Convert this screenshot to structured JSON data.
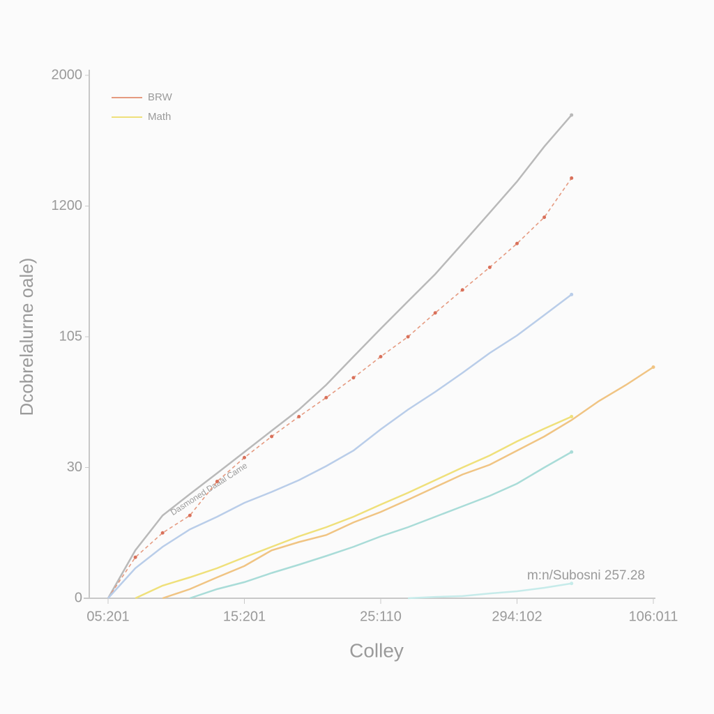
{
  "chart_data": {
    "type": "line",
    "y_label": "Dcobrelalurne oale)",
    "x_label": "Colley",
    "annotation": "Dasmoned Daaal Came",
    "note": "m:n/Subosni 257.28",
    "categories": [
      "05:201",
      null,
      null,
      null,
      null,
      "15:201",
      null,
      null,
      null,
      null,
      "25:110",
      null,
      null,
      null,
      null,
      "294:102",
      null,
      null,
      null,
      null,
      "106:011"
    ],
    "ylim": [
      0,
      2000
    ],
    "yticks": [
      0,
      30,
      105,
      1200,
      2000
    ],
    "legend": "upper left",
    "series": [
      {
        "color": "#b9b9b9",
        "values": [
          0,
          11,
          19,
          23.9,
          28.7,
          38.9,
          51.1,
          63.2,
          77.4,
          93.6,
          173,
          402,
          630,
          886,
          1145,
          1350,
          1564,
          1757,
          null,
          null,
          null
        ]
      },
      {
        "name": "BRW",
        "color": "#e59a80",
        "values": [
          0,
          9.4,
          15,
          19,
          26.8,
          35.7,
          47.8,
          59.2,
          70.1,
          81.5,
          93.6,
          105,
          305,
          498,
          687,
          886,
          1106,
          1371,
          null,
          null,
          null
        ]
      },
      {
        "color": "#b9cde9",
        "values": [
          0,
          6.9,
          11.8,
          15.8,
          18.7,
          21.9,
          24.4,
          27.1,
          30.8,
          39.7,
          51.9,
          63.2,
          73.4,
          84.3,
          95.7,
          116,
          287,
          459,
          null,
          null,
          null
        ]
      },
      {
        "name": "Math",
        "color": "#efe07a",
        "values": [
          null,
          0,
          2.9,
          4.8,
          6.9,
          9.4,
          11.8,
          14.2,
          16.3,
          18.7,
          21.5,
          24.2,
          27.1,
          30,
          36.9,
          45,
          52.3,
          59.2,
          null,
          null,
          null
        ]
      },
      {
        "color": "#f0c483",
        "values": [
          null,
          null,
          0,
          2.1,
          4.8,
          7.4,
          11,
          12.9,
          14.5,
          17.4,
          19.8,
          22.6,
          25.5,
          28.4,
          31.6,
          39.7,
          47.8,
          57.2,
          68.1,
          77.4,
          87.6
        ]
      },
      {
        "color": "#a9dcd8",
        "values": [
          null,
          null,
          null,
          0,
          2.1,
          3.7,
          5.8,
          7.7,
          9.7,
          11.8,
          14.2,
          16.3,
          18.7,
          21.1,
          23.5,
          26.3,
          30,
          38.9,
          null,
          null,
          null
        ]
      },
      {
        "color": "#c6ebea",
        "values": [
          null,
          null,
          null,
          null,
          null,
          null,
          null,
          null,
          null,
          null,
          null,
          0,
          0.3,
          0.5,
          1.1,
          1.6,
          2.4,
          3.4,
          null,
          null,
          null
        ]
      }
    ]
  }
}
